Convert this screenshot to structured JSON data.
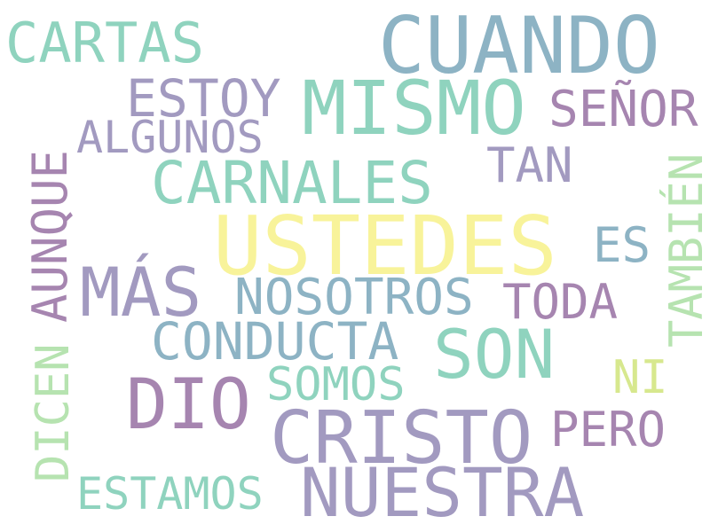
{
  "palette": {
    "teal": "#8FD3BE",
    "slate": "#8DB3C4",
    "lavender": "#A29AC0",
    "purple": "#A685B0",
    "yellow": "#F8F39A",
    "lime": "#D7E88E",
    "mint": "#B6E3B0"
  },
  "words": [
    {
      "text": "CARTAS",
      "color": "#8FD3BE"
    },
    {
      "text": "CUANDO",
      "color": "#8DB3C4"
    },
    {
      "text": "ESTOY",
      "color": "#A29AC0"
    },
    {
      "text": "MISMO",
      "color": "#8FD3BE"
    },
    {
      "text": "SEÑOR",
      "color": "#A685B0"
    },
    {
      "text": "ALGUNOS",
      "color": "#A29AC0"
    },
    {
      "text": "CARNALES",
      "color": "#8FD3BE"
    },
    {
      "text": "TAN",
      "color": "#A29AC0"
    },
    {
      "text": "AUNQUE",
      "color": "#A685B0"
    },
    {
      "text": "TAMBIÉN",
      "color": "#B6E3B0"
    },
    {
      "text": "USTEDES",
      "color": "#F8F39A"
    },
    {
      "text": "ES",
      "color": "#8DB3C4"
    },
    {
      "text": "MÁS",
      "color": "#A29AC0"
    },
    {
      "text": "NOSOTROS",
      "color": "#8DB3C4"
    },
    {
      "text": "TODA",
      "color": "#A685B0"
    },
    {
      "text": "CONDUCTA",
      "color": "#8DB3C4"
    },
    {
      "text": "SON",
      "color": "#8FD3BE"
    },
    {
      "text": "NI",
      "color": "#D7E88E"
    },
    {
      "text": "DICEN",
      "color": "#B6E3B0"
    },
    {
      "text": "SOMOS",
      "color": "#8FD3BE"
    },
    {
      "text": "DIO",
      "color": "#A685B0"
    },
    {
      "text": "CRISTO",
      "color": "#A29AC0"
    },
    {
      "text": "PERO",
      "color": "#A685B0"
    },
    {
      "text": "ESTAMOS",
      "color": "#8FD3BE"
    },
    {
      "text": "NUESTRA",
      "color": "#A29AC0"
    }
  ]
}
